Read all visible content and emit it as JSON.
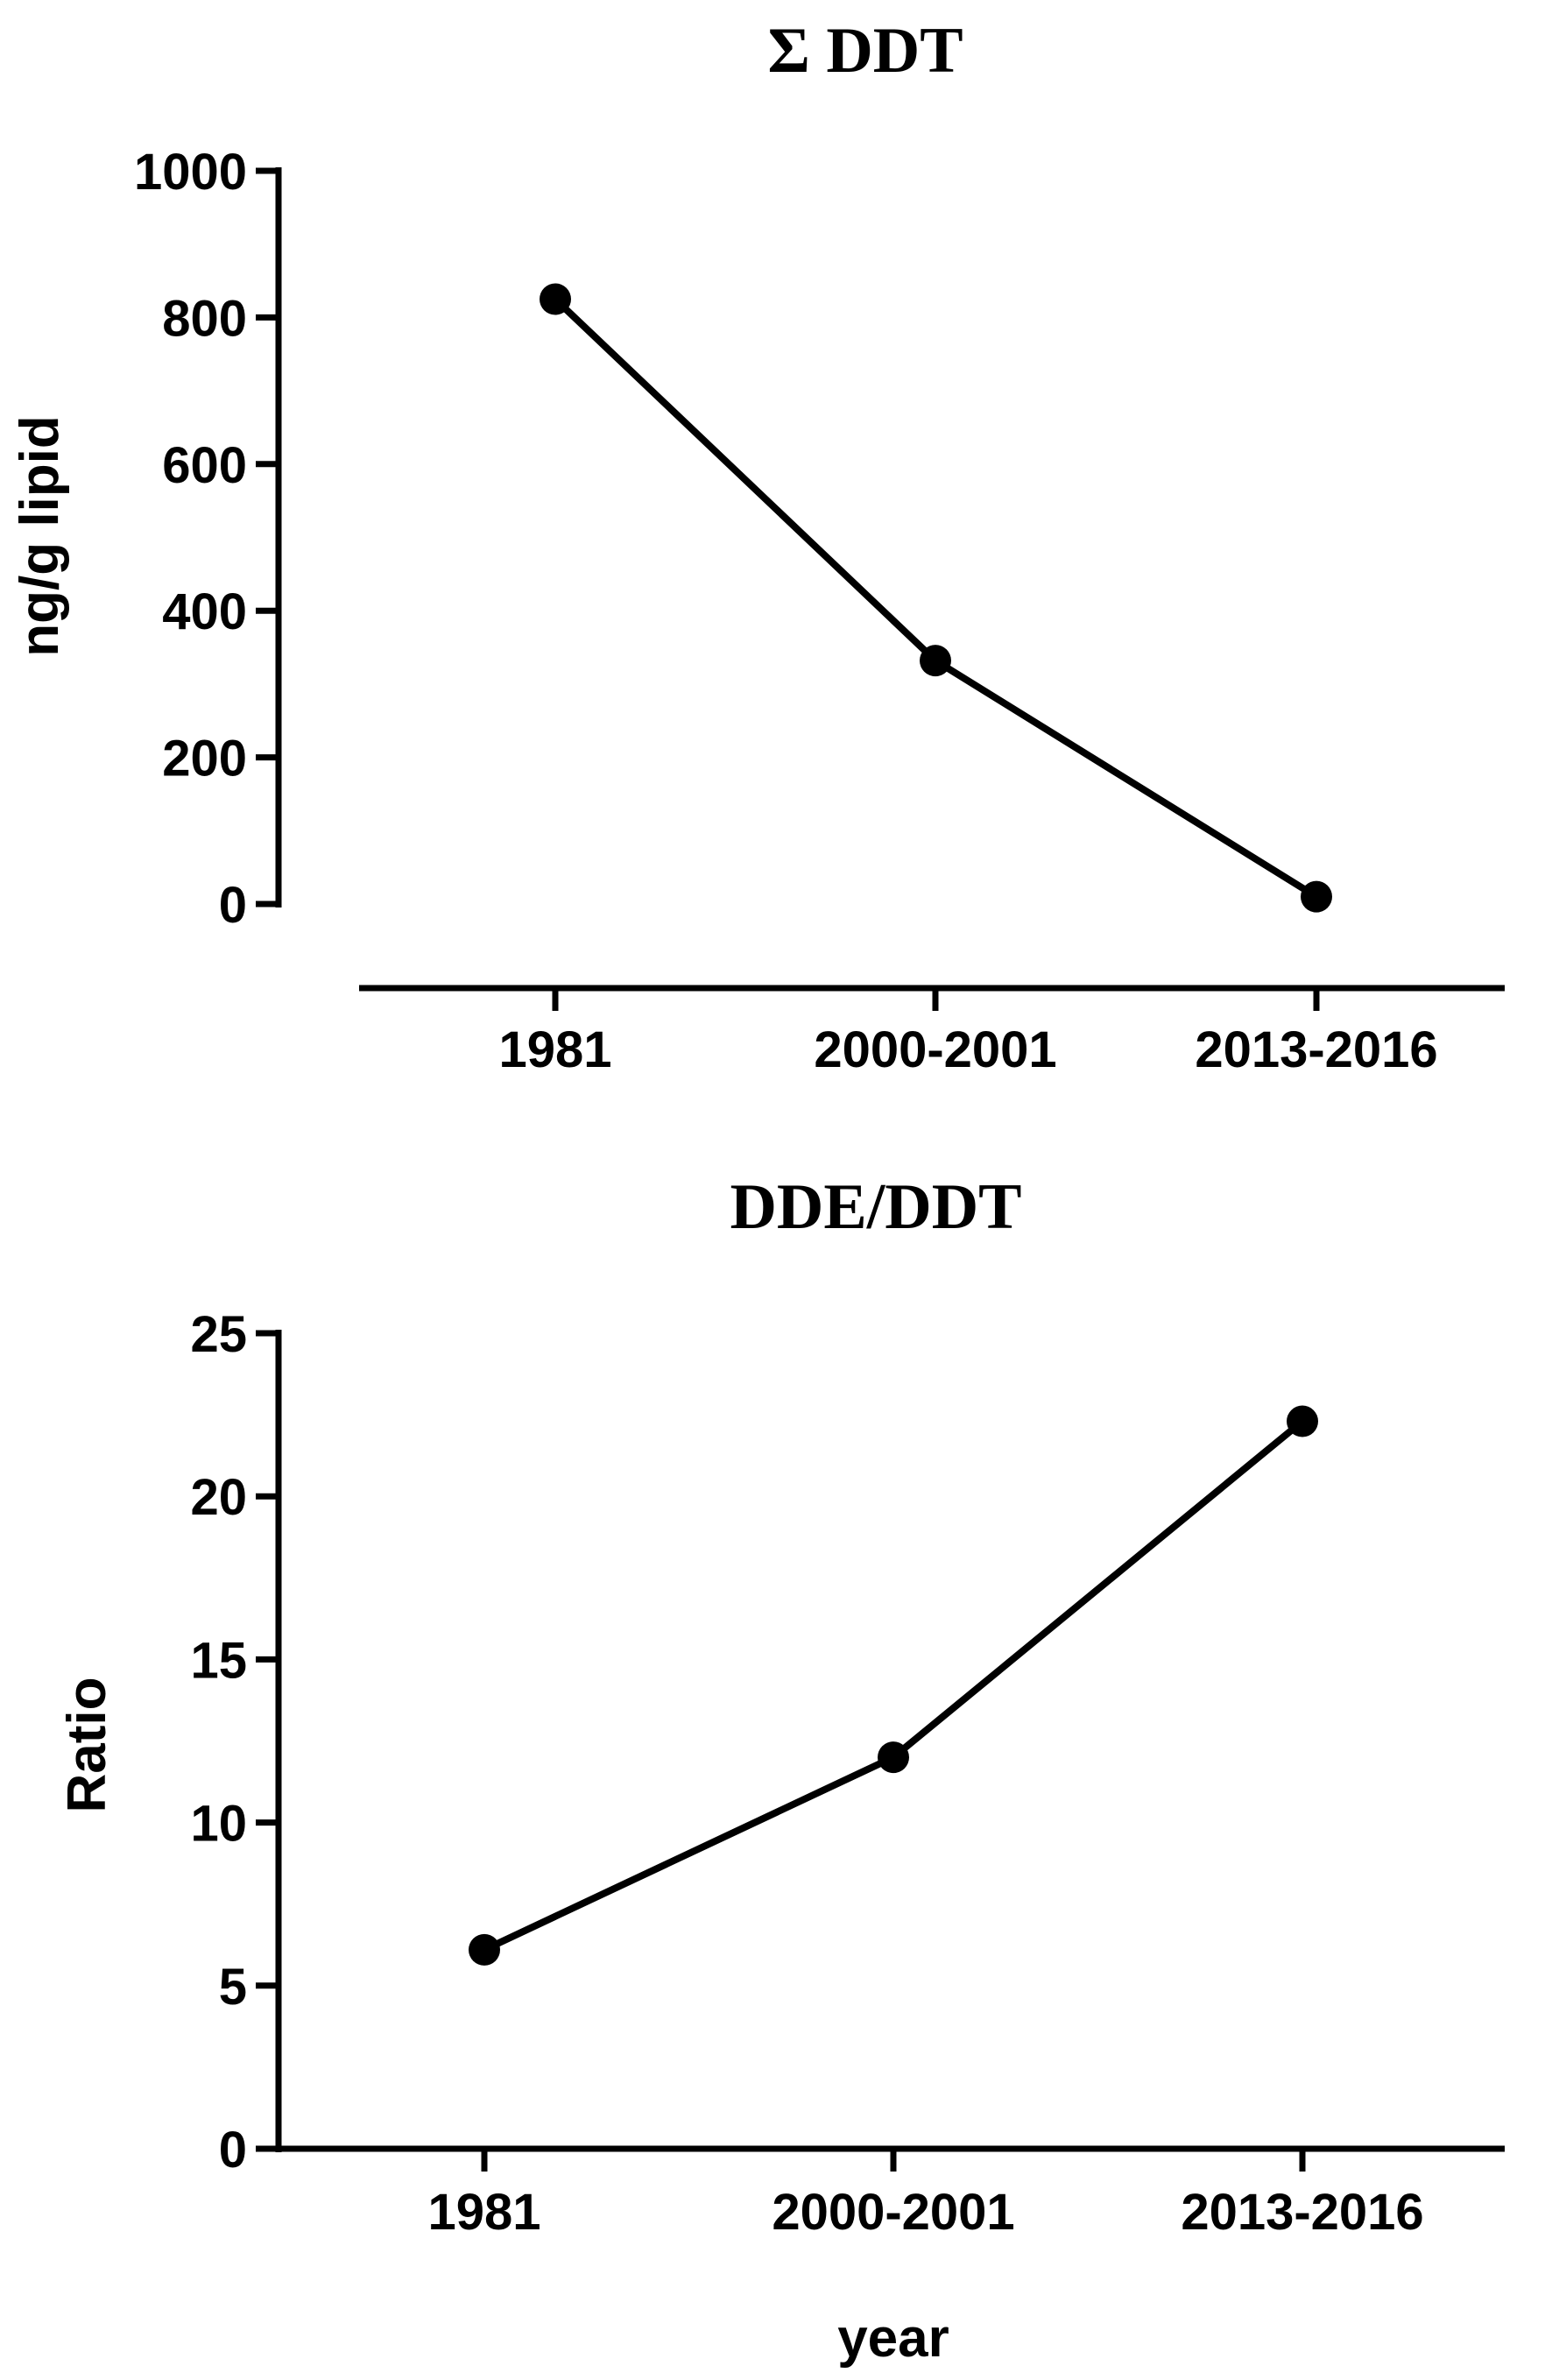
{
  "chart_data": [
    {
      "type": "line",
      "title": "Σ DDT",
      "ylabel": "ng/g lipid",
      "xlabel": "",
      "categories": [
        "1981",
        "2000-2001",
        "2013-2016"
      ],
      "values": [
        825,
        332,
        10
      ],
      "ylim": [
        0,
        1000
      ],
      "yticks": [
        0,
        200,
        400,
        600,
        800,
        1000
      ],
      "grid": false,
      "legend": "none",
      "color": "#000000"
    },
    {
      "type": "line",
      "title": "DDE/DDT",
      "ylabel": "Ratio",
      "xlabel": "year",
      "categories": [
        "1981",
        "2000-2001",
        "2013-2016"
      ],
      "values": [
        6.1,
        12.0,
        22.3
      ],
      "ylim": [
        0,
        25
      ],
      "yticks": [
        0,
        5,
        10,
        15,
        20,
        25
      ],
      "grid": false,
      "legend": "none",
      "color": "#000000"
    }
  ]
}
